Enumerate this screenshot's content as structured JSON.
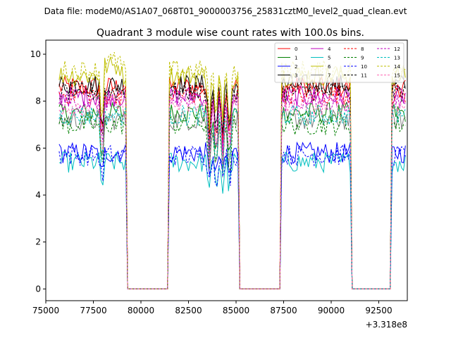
{
  "suptitle": "Data file: modeM0/AS1A07_068T01_9000003756_25831cztM0_level2_quad_clean.evt",
  "chart_data": {
    "type": "line",
    "title": "Quadrant 3 module wise count rates with 100.0s bins.",
    "xlabel": "",
    "ylabel": "",
    "x_offset_label": "+3.318e8",
    "xlim": [
      75000,
      94000
    ],
    "ylim": [
      -0.5,
      10.6
    ],
    "xticks": [
      75000,
      77500,
      80000,
      82500,
      85000,
      87500,
      90000,
      92500
    ],
    "xtick_labels": [
      "75000",
      "77500",
      "80000",
      "82500",
      "85000",
      "87500",
      "90000",
      "92500"
    ],
    "yticks": [
      0,
      2,
      4,
      6,
      8,
      10
    ],
    "ytick_labels": [
      "0",
      "2",
      "4",
      "6",
      "8",
      "10"
    ],
    "grid": false,
    "legend_position": "top-right",
    "legend_columns": 4,
    "bin_seconds": 100,
    "segments": [
      {
        "on_start": 75700,
        "on_end": 79200
      },
      {
        "off_start": 79300,
        "off_end": 81400
      },
      {
        "on_start": 81500,
        "on_end": 85100
      },
      {
        "off_start": 85200,
        "off_end": 87300
      },
      {
        "on_start": 87400,
        "on_end": 91000
      },
      {
        "off_start": 91100,
        "off_end": 93100
      },
      {
        "on_start": 93200,
        "on_end": 93900
      }
    ],
    "series": [
      {
        "name": "0",
        "color": "#ff0000",
        "style": "solid",
        "base": 8.6
      },
      {
        "name": "1",
        "color": "#008000",
        "style": "solid",
        "base": 7.5
      },
      {
        "name": "2",
        "color": "#0000ff",
        "style": "solid",
        "base": 5.8
      },
      {
        "name": "3",
        "color": "#000000",
        "style": "solid",
        "base": 8.7
      },
      {
        "name": "4",
        "color": "#bf00bf",
        "style": "solid",
        "base": 8.2
      },
      {
        "name": "5",
        "color": "#00bfbf",
        "style": "solid",
        "base": 5.4
      },
      {
        "name": "6",
        "color": "#bfbf00",
        "style": "solid",
        "base": 9.1
      },
      {
        "name": "7",
        "color": "#808080",
        "style": "solid",
        "base": 7.2
      },
      {
        "name": "8",
        "color": "#ff0000",
        "style": "dashed",
        "base": 8.3
      },
      {
        "name": "9",
        "color": "#008000",
        "style": "dashed",
        "base": 7.0
      },
      {
        "name": "10",
        "color": "#0000ff",
        "style": "dashed",
        "base": 5.7
      },
      {
        "name": "11",
        "color": "#000000",
        "style": "dashed",
        "base": 8.4
      },
      {
        "name": "12",
        "color": "#bf00bf",
        "style": "dashed",
        "base": 8.0
      },
      {
        "name": "13",
        "color": "#00bfbf",
        "style": "dashed",
        "base": 7.4
      },
      {
        "name": "14",
        "color": "#bfbf00",
        "style": "dashed",
        "base": 9.3
      },
      {
        "name": "15",
        "color": "#ff69b4",
        "style": "dashed",
        "base": 7.8
      }
    ]
  }
}
